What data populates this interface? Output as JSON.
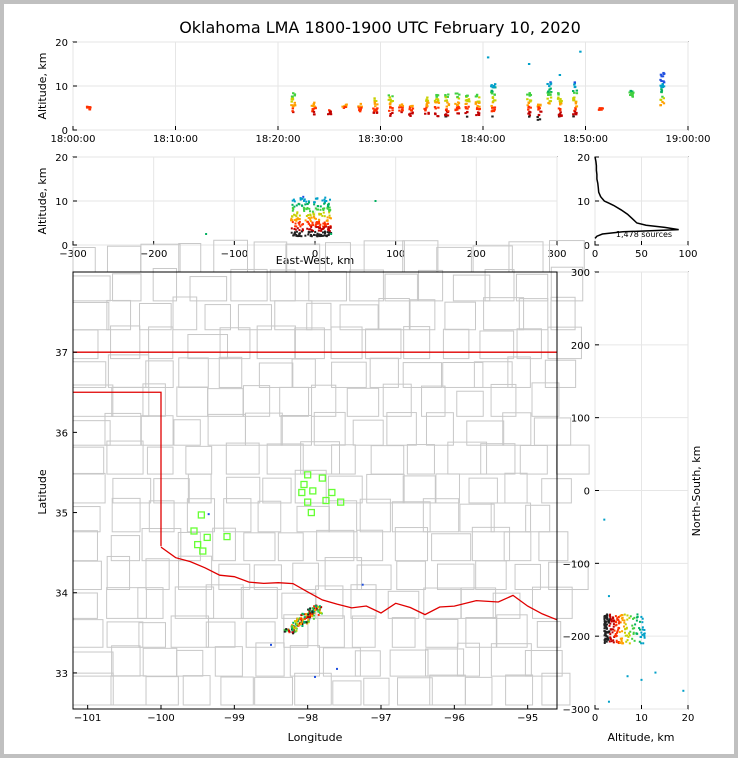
{
  "title": "Oklahoma LMA 1800-1900 UTC February 10, 2020",
  "colors": {
    "state_border": "#e00000",
    "county_lines": "#c8c8c8",
    "station": "#66ff33",
    "axis": "#000000",
    "grid": "#e6e6e6",
    "source_palette": [
      "#1f4fe0",
      "#00a0c8",
      "#00b060",
      "#40d040",
      "#c8d000",
      "#ffa000",
      "#ff3000",
      "#c00000",
      "#202020"
    ]
  },
  "chart_data": [
    {
      "id": "time_altitude",
      "type": "scatter",
      "ylabel": "Altitude, km",
      "xlabel": "",
      "x_ticks": [
        "18:00:00",
        "18:10:00",
        "18:20:00",
        "18:30:00",
        "18:40:00",
        "18:50:00",
        "19:00:00"
      ],
      "xlim_minutes": [
        0,
        60
      ],
      "ylim": [
        0,
        20
      ],
      "y_ticks": [
        0,
        10,
        20
      ],
      "grid": true,
      "clusters": [
        {
          "t": 1.5,
          "alt": [
            4.5,
            5.5
          ]
        },
        {
          "t": 21.5,
          "alt": [
            3.5,
            8.5
          ]
        },
        {
          "t": 23.5,
          "alt": [
            3.5,
            6.5
          ]
        },
        {
          "t": 25,
          "alt": [
            3.5,
            4.5
          ]
        },
        {
          "t": 26.5,
          "alt": [
            5,
            6
          ]
        },
        {
          "t": 28,
          "alt": [
            4,
            6
          ]
        },
        {
          "t": 29.5,
          "alt": [
            3.5,
            7.5
          ]
        },
        {
          "t": 31,
          "alt": [
            3,
            8
          ]
        },
        {
          "t": 32,
          "alt": [
            4,
            6
          ]
        },
        {
          "t": 33,
          "alt": [
            3,
            6
          ]
        },
        {
          "t": 34.5,
          "alt": [
            3.5,
            7.5
          ]
        },
        {
          "t": 35.5,
          "alt": [
            3,
            8
          ]
        },
        {
          "t": 36.5,
          "alt": [
            3,
            8.5
          ]
        },
        {
          "t": 37.5,
          "alt": [
            3,
            8.5
          ]
        },
        {
          "t": 38.5,
          "alt": [
            3,
            8
          ]
        },
        {
          "t": 39.5,
          "alt": [
            3,
            8.5
          ]
        },
        {
          "t": 41,
          "alt": [
            3,
            10.5
          ]
        },
        {
          "t": 44.5,
          "alt": [
            2.5,
            8.5
          ]
        },
        {
          "t": 45.5,
          "alt": [
            2,
            6
          ]
        },
        {
          "t": 46.5,
          "alt": [
            6,
            11
          ]
        },
        {
          "t": 47.5,
          "alt": [
            3,
            9
          ]
        },
        {
          "t": 49,
          "alt": [
            3,
            11
          ]
        },
        {
          "t": 51.5,
          "alt": [
            4.5,
            5
          ]
        },
        {
          "t": 54.5,
          "alt": [
            7.5,
            9
          ]
        },
        {
          "t": 57.5,
          "alt": [
            5.5,
            13
          ]
        }
      ],
      "outliers": [
        {
          "t": 40.5,
          "alt": 16.5
        },
        {
          "t": 44.5,
          "alt": 15
        },
        {
          "t": 49.5,
          "alt": 17.8
        },
        {
          "t": 47.5,
          "alt": 12.5
        }
      ]
    },
    {
      "id": "eastwest_altitude",
      "type": "scatter",
      "xlabel": "East-West, km",
      "ylabel": "Altitude, km",
      "xlim": [
        -300,
        300
      ],
      "x_ticks": [
        -300,
        -200,
        -100,
        0,
        100,
        200,
        300
      ],
      "ylim": [
        0,
        20
      ],
      "y_ticks": [
        0,
        10,
        20
      ],
      "grid": true,
      "main_cluster": {
        "x": [
          -30,
          20
        ],
        "alt": [
          2,
          11
        ]
      },
      "outliers": [
        {
          "x": -135,
          "alt": 2.5
        },
        {
          "x": 75,
          "alt": 10
        },
        {
          "x": 20,
          "alt": 2.5
        }
      ]
    },
    {
      "id": "altitude_histogram",
      "type": "line",
      "xlim": [
        0,
        100
      ],
      "x_ticks": [
        0,
        50,
        100
      ],
      "ylim": [
        0,
        20
      ],
      "y_ticks": [
        0,
        10,
        20
      ],
      "annotation": "1,478 sources",
      "points": [
        [
          0,
          20
        ],
        [
          1,
          19
        ],
        [
          1.5,
          18
        ],
        [
          1.5,
          17
        ],
        [
          2,
          16
        ],
        [
          2,
          15
        ],
        [
          3,
          14
        ],
        [
          3.5,
          13
        ],
        [
          4,
          12
        ],
        [
          6,
          11
        ],
        [
          8,
          10.5
        ],
        [
          10,
          10
        ],
        [
          15,
          9.5
        ],
        [
          20,
          9
        ],
        [
          28,
          8
        ],
        [
          35,
          7
        ],
        [
          40,
          6
        ],
        [
          45,
          5
        ],
        [
          55,
          4.5
        ],
        [
          75,
          4
        ],
        [
          90,
          3.5
        ],
        [
          30,
          3
        ],
        [
          8,
          2.5
        ],
        [
          2,
          2
        ],
        [
          0,
          1.5
        ]
      ]
    },
    {
      "id": "plan_view",
      "type": "scatter",
      "xlabel": "Longitude",
      "ylabel": "Latitude",
      "xlim": [
        -101.2,
        -94.6
      ],
      "x_ticks": [
        -101,
        -100,
        -99,
        -98,
        -97,
        -96,
        -95
      ],
      "ylim": [
        32.55,
        38.0
      ],
      "y_ticks": [
        33,
        34,
        35,
        36,
        37
      ],
      "stations": [
        {
          "lon": -99.45,
          "lat": 34.97
        },
        {
          "lon": -99.55,
          "lat": 34.77
        },
        {
          "lon": -99.37,
          "lat": 34.69
        },
        {
          "lon": -99.5,
          "lat": 34.6
        },
        {
          "lon": -99.43,
          "lat": 34.52
        },
        {
          "lon": -99.1,
          "lat": 34.7
        },
        {
          "lon": -98.0,
          "lat": 35.47
        },
        {
          "lon": -98.05,
          "lat": 35.35
        },
        {
          "lon": -98.08,
          "lat": 35.25
        },
        {
          "lon": -97.93,
          "lat": 35.27
        },
        {
          "lon": -98.0,
          "lat": 35.13
        },
        {
          "lon": -97.95,
          "lat": 35.0
        },
        {
          "lon": -97.8,
          "lat": 35.43
        },
        {
          "lon": -97.75,
          "lat": 35.15
        },
        {
          "lon": -97.67,
          "lat": 35.25
        },
        {
          "lon": -97.55,
          "lat": 35.13
        }
      ],
      "main_cluster": {
        "lon": [
          -98.3,
          -97.85
        ],
        "lat": [
          33.5,
          33.8
        ]
      },
      "outliers": [
        {
          "lon": -98.5,
          "lat": 33.35
        },
        {
          "lon": -97.9,
          "lat": 32.95
        },
        {
          "lon": -97.6,
          "lat": 33.05
        },
        {
          "lon": -97.25,
          "lat": 34.1
        },
        {
          "lon": -99.35,
          "lat": 34.98
        }
      ]
    },
    {
      "id": "altitude_northsouth",
      "type": "scatter",
      "xlabel": "Altitude, km",
      "ylabel": "North-South, km",
      "xlim": [
        0,
        20
      ],
      "x_ticks": [
        0,
        10,
        20
      ],
      "ylim": [
        -300,
        300
      ],
      "y_ticks": [
        -300,
        -200,
        -100,
        0,
        100,
        200,
        300
      ],
      "main_cluster": {
        "alt": [
          2,
          11
        ],
        "ns": [
          -210,
          -170
        ]
      },
      "outliers": [
        {
          "alt": 2,
          "ns": -40
        },
        {
          "alt": 3,
          "ns": -145
        },
        {
          "alt": 7,
          "ns": -255
        },
        {
          "alt": 10,
          "ns": -260
        },
        {
          "alt": 13,
          "ns": -250
        },
        {
          "alt": 19,
          "ns": -275
        },
        {
          "alt": 3,
          "ns": -290
        }
      ]
    }
  ]
}
